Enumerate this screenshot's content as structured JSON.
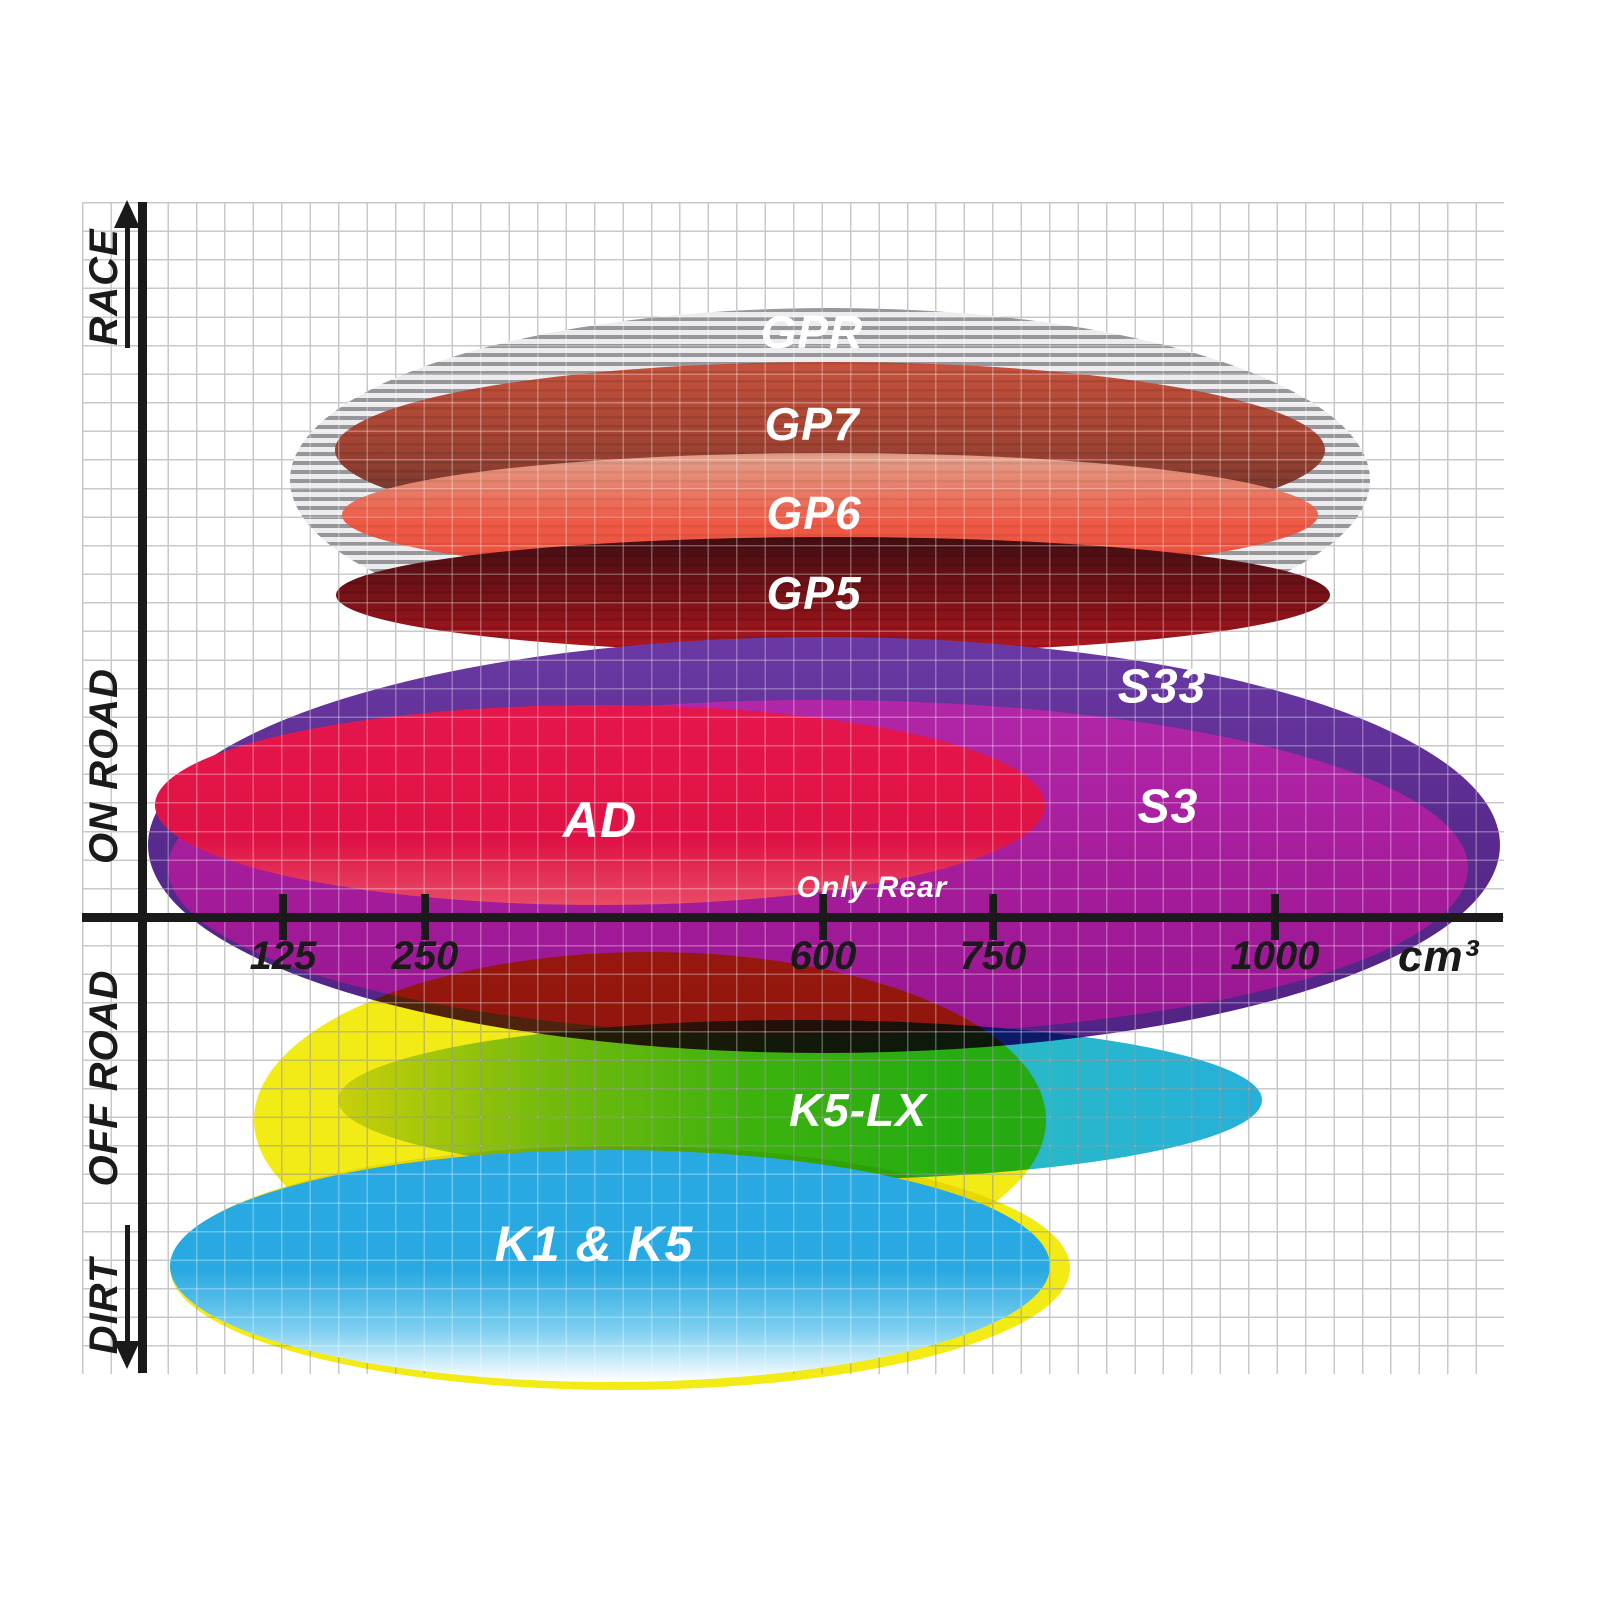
{
  "axes": {
    "x": {
      "ticks": [
        "125",
        "250",
        "600",
        "750",
        "1000"
      ],
      "unit": "cm³"
    },
    "y": {
      "zones": [
        "RACE",
        "ON ROAD",
        "OFF ROAD",
        "DIRT"
      ]
    }
  },
  "chart_data": {
    "type": "scatter",
    "title": "",
    "description": "Brake pad compound positioning map: elliptical regions show each compound's engine displacement range (cm³, x-axis) versus intended terrain (y-axis zones RACE, ON ROAD, OFF ROAD, DIRT).",
    "x_axis": {
      "label": "cm³",
      "ticks": [
        125,
        250,
        600,
        750,
        1000
      ],
      "scale": "nonlinear"
    },
    "y_axis": {
      "zones_top_to_bottom": [
        "RACE",
        "ON ROAD",
        "OFF ROAD",
        "DIRT"
      ]
    },
    "legend_position": "none",
    "grid": true,
    "regions": [
      {
        "label": "GPR",
        "terrain": "RACE",
        "cc_range": [
          130,
          1100
        ],
        "color": "#9a9a9c",
        "pattern": "horizontal-stripes"
      },
      {
        "label": "GP7",
        "terrain": "RACE",
        "cc_range": [
          170,
          1080
        ],
        "color": "#c7523c"
      },
      {
        "label": "GP6",
        "terrain": "RACE",
        "cc_range": [
          170,
          1060
        ],
        "color": "#ef5a45"
      },
      {
        "label": "GP5",
        "terrain": "RACE",
        "cc_range": [
          170,
          1090
        ],
        "color": "#8c1519"
      },
      {
        "label": "S33",
        "terrain": "ON ROAD",
        "cc_range": [
          50,
          1300
        ],
        "color": "#5a2b8e"
      },
      {
        "label": "S3",
        "terrain": "ON ROAD",
        "cc_range": [
          60,
          1250
        ],
        "color": "#a31b99"
      },
      {
        "label": "AD",
        "terrain": "ON ROAD",
        "cc_range": [
          50,
          790
        ],
        "color": "#e5164b",
        "note": "Only Rear"
      },
      {
        "label": "",
        "terrain": "OFF ROAD",
        "cc_range": [
          110,
          800
        ],
        "color": "#f3eb16"
      },
      {
        "label": "K5-LX",
        "terrain": "OFF ROAD",
        "cc_range": [
          170,
          990
        ],
        "color": "#3fc19e"
      },
      {
        "label": "K1 & K5",
        "terrain": "DIRT",
        "cc_range": [
          60,
          780
        ],
        "color": "#29a9e1"
      }
    ]
  }
}
